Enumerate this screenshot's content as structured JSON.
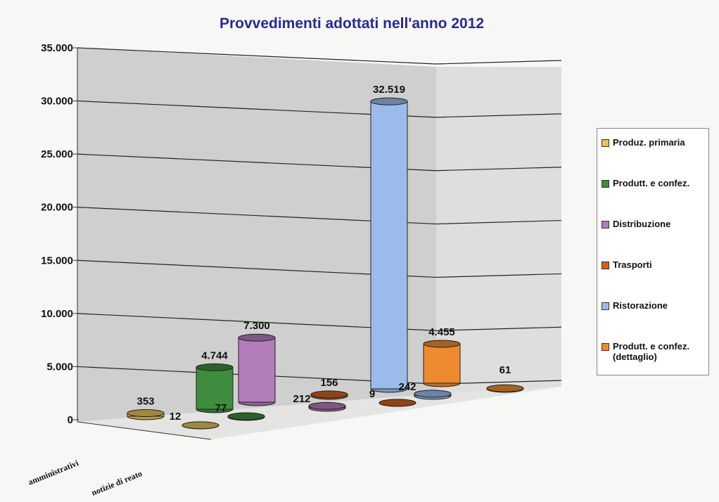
{
  "chart_data": {
    "type": "bar3d",
    "title": "Provvedimenti adottati nell'anno 2012",
    "categories": [
      "amministrativi",
      "notizie di reato"
    ],
    "series": [
      {
        "name": "Produz. primaria",
        "color": "#e6c25a",
        "values": [
          353,
          12
        ],
        "value_labels": [
          "353",
          "12"
        ]
      },
      {
        "name": "Produtt. e confez.",
        "color": "#3e8c3e",
        "values": [
          4744,
          77
        ],
        "value_labels": [
          "4.744",
          "77"
        ]
      },
      {
        "name": "Distribuzione",
        "color": "#b27cba",
        "values": [
          7300,
          212
        ],
        "value_labels": [
          "7.300",
          "212"
        ]
      },
      {
        "name": "Trasporti",
        "color": "#d0601e",
        "values": [
          156,
          9
        ],
        "value_labels": [
          "156",
          "9"
        ]
      },
      {
        "name": "Ristorazione",
        "color": "#9cbbea",
        "values": [
          32519,
          242
        ],
        "value_labels": [
          "32.519",
          "242"
        ]
      },
      {
        "name": "Produtt. e confez. (dettaglio)",
        "color": "#ee8a30",
        "values": [
          4455,
          61
        ],
        "value_labels": [
          "4.455",
          "61"
        ]
      }
    ],
    "ylim": [
      0,
      35000
    ],
    "yticks": [
      {
        "value": 0,
        "label": "0"
      },
      {
        "value": 5000,
        "label": "5.000"
      },
      {
        "value": 10000,
        "label": "10.000"
      },
      {
        "value": 15000,
        "label": "15.000"
      },
      {
        "value": 20000,
        "label": "20.000"
      },
      {
        "value": 25000,
        "label": "25.000"
      },
      {
        "value": 30000,
        "label": "30.000"
      },
      {
        "value": 35000,
        "label": "35.000"
      }
    ],
    "grid": true
  }
}
